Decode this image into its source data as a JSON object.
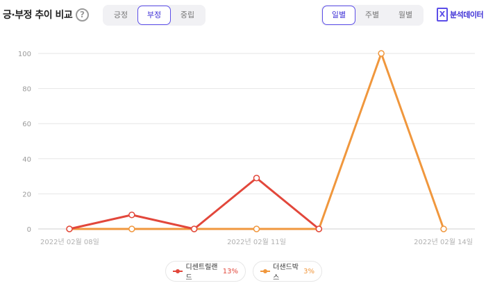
{
  "header": {
    "title": "긍·부정 추이 비교",
    "help_icon": "question-circle-icon",
    "sentiment_tabs": [
      {
        "label": "긍정",
        "active": false
      },
      {
        "label": "부정",
        "active": true
      },
      {
        "label": "중립",
        "active": false
      }
    ],
    "period_tabs": [
      {
        "label": "일별",
        "active": true
      },
      {
        "label": "주별",
        "active": false
      },
      {
        "label": "월별",
        "active": false
      }
    ],
    "export": {
      "icon": "excel-icon",
      "icon_glyph": "X",
      "label": "분석데이터"
    }
  },
  "colors": {
    "accent": "#5b4de8",
    "series_1": "#e2473b",
    "series_2": "#f0973d",
    "grid": "#e6e6e6",
    "axis_text": "#9a9a9a"
  },
  "chart_data": {
    "type": "line",
    "x": [
      "2022년 02월 08일",
      "2022년 02월 09일",
      "2022년 02월 10일",
      "2022년 02월 11일",
      "2022년 02월 12일",
      "2022년 02월 13일",
      "2022년 02월 14일"
    ],
    "x_tick_labels": [
      "2022년 02월 08일",
      "2022년 02월 11일",
      "2022년 02월 14일"
    ],
    "y_ticks": [
      0,
      20,
      40,
      60,
      80,
      100
    ],
    "ylim": [
      0,
      100
    ],
    "grid": true,
    "legend_position": "bottom",
    "series": [
      {
        "name": "디센트릴랜드",
        "share": "13%",
        "color": "#e2473b",
        "values": [
          0,
          8,
          0,
          29,
          0,
          null,
          null
        ]
      },
      {
        "name": "더샌드박스",
        "share": "3%",
        "color": "#f0973d",
        "values": [
          0,
          0,
          0,
          0,
          0,
          100,
          0
        ]
      }
    ]
  }
}
